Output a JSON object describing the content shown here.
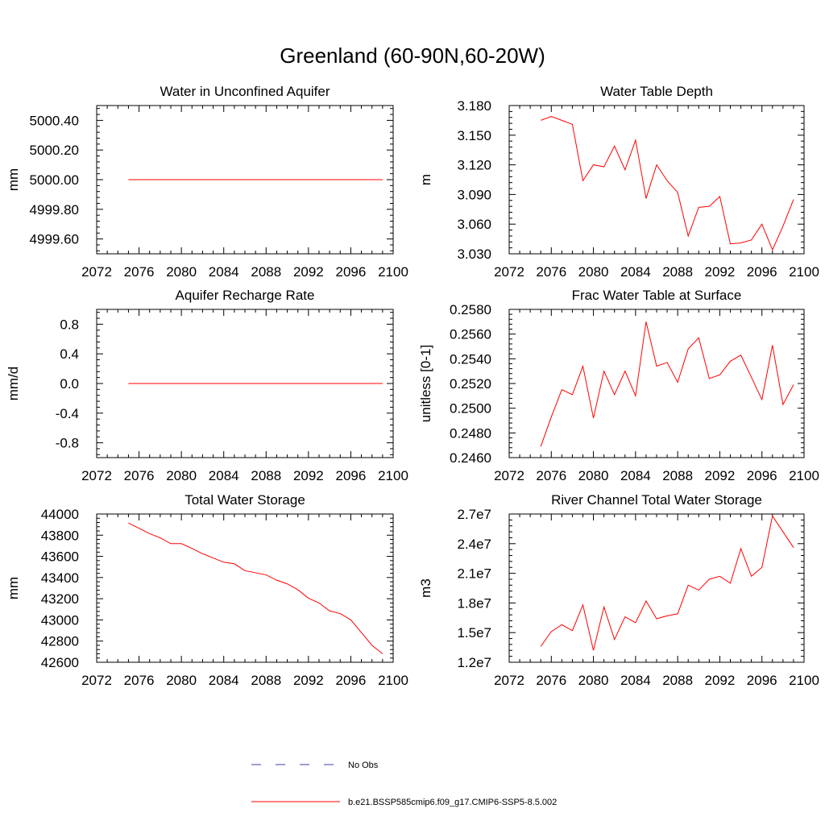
{
  "title": "Greenland (60-90N,60-20W)",
  "legend": {
    "items": [
      {
        "label": "No Obs",
        "color": "#3b3bb3",
        "dash": true
      },
      {
        "label": "b.e21.BSSP585cmip6.f09_g17.CMIP6-SSP5-8.5.002",
        "color": "#ff0000",
        "dash": false
      }
    ]
  },
  "chart_data": [
    {
      "type": "line",
      "title": "Water in Unconfined Aquifer",
      "ylabel": "mm",
      "xlim": [
        2072,
        2100
      ],
      "ylim": [
        4999.5,
        5000.5
      ],
      "xticks": [
        "2072",
        "2076",
        "2080",
        "2084",
        "2088",
        "2092",
        "2096",
        "2100"
      ],
      "yticks": [
        "4999.60",
        "4999.80",
        "5000.00",
        "5000.20",
        "5000.40"
      ],
      "series": [
        {
          "color": "#ff0000",
          "x": [
            2075,
            2099
          ],
          "y": [
            5000.0,
            5000.0
          ]
        }
      ]
    },
    {
      "type": "line",
      "title": "Water Table Depth",
      "ylabel": "m",
      "xlim": [
        2072,
        2100
      ],
      "ylim": [
        3.03,
        3.18
      ],
      "xticks": [
        "2072",
        "2076",
        "2080",
        "2084",
        "2088",
        "2092",
        "2096",
        "2100"
      ],
      "yticks": [
        "3.030",
        "3.060",
        "3.090",
        "3.120",
        "3.150",
        "3.180"
      ],
      "series": [
        {
          "color": "#ff0000",
          "x": [
            2075,
            2076,
            2077,
            2078,
            2079,
            2080,
            2081,
            2082,
            2083,
            2084,
            2085,
            2086,
            2087,
            2088,
            2089,
            2090,
            2091,
            2092,
            2093,
            2094,
            2095,
            2096,
            2097,
            2098,
            2099
          ],
          "y": [
            3.165,
            3.169,
            3.165,
            3.161,
            3.104,
            3.12,
            3.118,
            3.139,
            3.115,
            3.145,
            3.086,
            3.12,
            3.104,
            3.092,
            3.048,
            3.077,
            3.078,
            3.088,
            3.04,
            3.041,
            3.044,
            3.06,
            3.034,
            3.058,
            3.085
          ]
        }
      ]
    },
    {
      "type": "line",
      "title": "Aquifer Recharge Rate",
      "ylabel": "mm/d",
      "xlim": [
        2072,
        2100
      ],
      "ylim": [
        -1.0,
        1.0
      ],
      "xticks": [
        "2072",
        "2076",
        "2080",
        "2084",
        "2088",
        "2092",
        "2096",
        "2100"
      ],
      "yticks": [
        "-0.8",
        "-0.4",
        "0.0",
        "0.4",
        "0.8"
      ],
      "series": [
        {
          "color": "#ff0000",
          "x": [
            2075,
            2099
          ],
          "y": [
            0.0,
            0.0
          ]
        }
      ]
    },
    {
      "type": "line",
      "title": "Frac Water Table at Surface",
      "ylabel": "unitless [0-1]",
      "xlim": [
        2072,
        2100
      ],
      "ylim": [
        0.246,
        0.258
      ],
      "xticks": [
        "2072",
        "2076",
        "2080",
        "2084",
        "2088",
        "2092",
        "2096",
        "2100"
      ],
      "yticks": [
        "0.2460",
        "0.2480",
        "0.2500",
        "0.2520",
        "0.2540",
        "0.2560",
        "0.2580"
      ],
      "series": [
        {
          "color": "#ff0000",
          "x": [
            2075,
            2076,
            2077,
            2078,
            2079,
            2080,
            2081,
            2082,
            2083,
            2084,
            2085,
            2086,
            2087,
            2088,
            2089,
            2090,
            2091,
            2092,
            2093,
            2094,
            2095,
            2096,
            2097,
            2098,
            2099
          ],
          "y": [
            0.2469,
            0.2493,
            0.2515,
            0.2511,
            0.2534,
            0.2492,
            0.253,
            0.2511,
            0.253,
            0.251,
            0.257,
            0.2534,
            0.2537,
            0.2521,
            0.2548,
            0.2557,
            0.2524,
            0.2527,
            0.2538,
            0.2543,
            0.2525,
            0.2507,
            0.2551,
            0.2503,
            0.2519
          ]
        }
      ]
    },
    {
      "type": "line",
      "title": "Total Water Storage",
      "ylabel": "mm",
      "xlim": [
        2072,
        2100
      ],
      "ylim": [
        42600,
        44000
      ],
      "xticks": [
        "2072",
        "2076",
        "2080",
        "2084",
        "2088",
        "2092",
        "2096",
        "2100"
      ],
      "yticks": [
        "42600",
        "42800",
        "43000",
        "43200",
        "43400",
        "43600",
        "43800",
        "44000"
      ],
      "series": [
        {
          "color": "#ff0000",
          "x": [
            2075,
            2076,
            2077,
            2078,
            2079,
            2080,
            2081,
            2082,
            2083,
            2084,
            2085,
            2086,
            2087,
            2088,
            2089,
            2090,
            2091,
            2092,
            2093,
            2094,
            2095,
            2096,
            2097,
            2098,
            2099
          ],
          "y": [
            43915,
            43865,
            43815,
            43775,
            43720,
            43720,
            43675,
            43625,
            43585,
            43545,
            43530,
            43465,
            43445,
            43425,
            43375,
            43340,
            43285,
            43205,
            43160,
            43085,
            43060,
            43000,
            42880,
            42760,
            42680
          ]
        }
      ]
    },
    {
      "type": "line",
      "title": "River Channel Total Water Storage",
      "ylabel": "m3",
      "xlim": [
        2072,
        2100
      ],
      "ylim": [
        12000000,
        27000000
      ],
      "xticks": [
        "2072",
        "2076",
        "2080",
        "2084",
        "2088",
        "2092",
        "2096",
        "2100"
      ],
      "yticks": [
        "1.2e7",
        "1.5e7",
        "1.8e7",
        "2.1e7",
        "2.4e7",
        "2.7e7"
      ],
      "series": [
        {
          "color": "#ff0000",
          "x": [
            2075,
            2076,
            2077,
            2078,
            2079,
            2080,
            2081,
            2082,
            2083,
            2084,
            2085,
            2086,
            2087,
            2088,
            2089,
            2090,
            2091,
            2092,
            2093,
            2094,
            2095,
            2096,
            2097,
            2098,
            2099
          ],
          "y": [
            13600000,
            15100000,
            15800000,
            15200000,
            17800000,
            13200000,
            17600000,
            14300000,
            16600000,
            16000000,
            18200000,
            16400000,
            16700000,
            16900000,
            19800000,
            19300000,
            20400000,
            20700000,
            20000000,
            23500000,
            20700000,
            21600000,
            26800000,
            25200000,
            23600000
          ]
        }
      ]
    }
  ]
}
